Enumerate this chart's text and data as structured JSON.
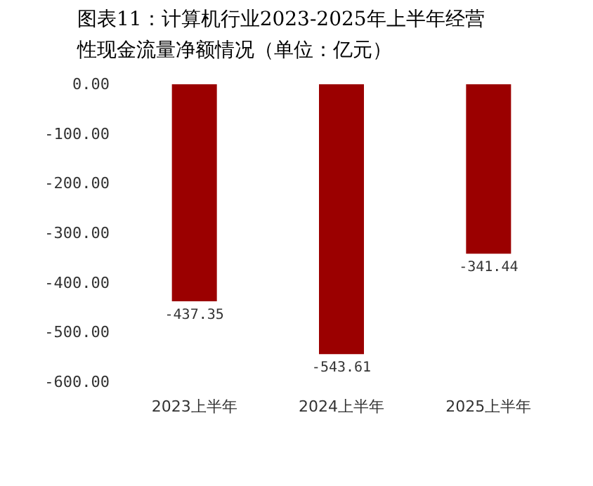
{
  "chart_data": {
    "type": "bar",
    "title": "图表11：计算机行业2023-2025年上半年经营性现金流量净额情况（单位：亿元）",
    "categories": [
      "2023上半年",
      "2024上半年",
      "2025上半年"
    ],
    "values": [
      -437.35,
      -543.61,
      -341.44
    ],
    "color": "#9b0000",
    "ylim": [
      -600,
      0
    ],
    "yticks": [
      {
        "value": -600,
        "label": "-600.00"
      },
      {
        "value": -500,
        "label": "-500.00"
      },
      {
        "value": -400,
        "label": "-400.00"
      },
      {
        "value": -300,
        "label": "-300.00"
      },
      {
        "value": -200,
        "label": "-200.00"
      },
      {
        "value": -100,
        "label": "-100.00"
      },
      {
        "value": 0,
        "label": "0.00"
      }
    ],
    "data_labels": true,
    "grid": false
  }
}
